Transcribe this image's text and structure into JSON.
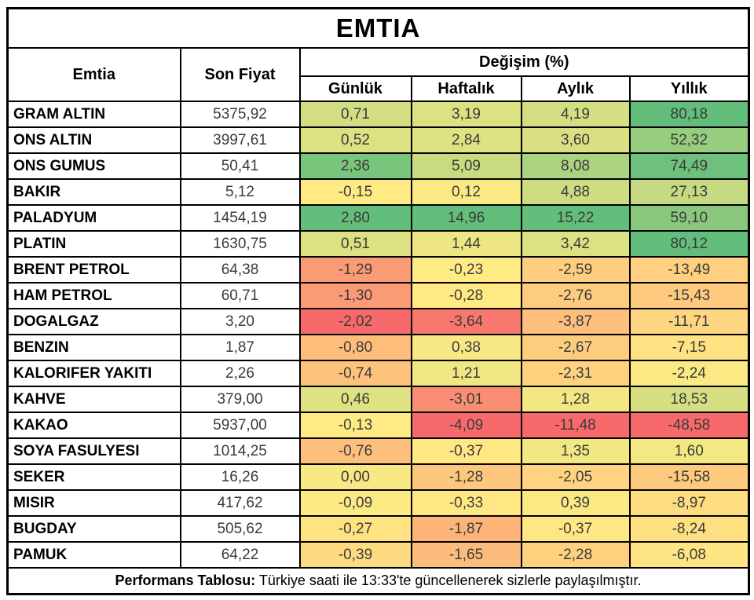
{
  "chart_data": {
    "type": "table",
    "title": "EMTIA",
    "header": {
      "emtia": "Emtia",
      "son_fiyat": "Son Fiyat",
      "degisim": "Değişim (%)",
      "periods": [
        "Günlük",
        "Haftalık",
        "Aylık",
        "Yıllık"
      ]
    },
    "rows": [
      {
        "name": "GRAM ALTIN",
        "price": "5375,92",
        "changes": [
          "0,71",
          "3,19",
          "4,19",
          "80,18"
        ]
      },
      {
        "name": "ONS ALTIN",
        "price": "3997,61",
        "changes": [
          "0,52",
          "2,84",
          "3,60",
          "52,32"
        ]
      },
      {
        "name": "ONS GUMUS",
        "price": "50,41",
        "changes": [
          "2,36",
          "5,09",
          "8,08",
          "74,49"
        ]
      },
      {
        "name": "BAKIR",
        "price": "5,12",
        "changes": [
          "-0,15",
          "0,12",
          "4,88",
          "27,13"
        ]
      },
      {
        "name": "PALADYUM",
        "price": "1454,19",
        "changes": [
          "2,80",
          "14,96",
          "15,22",
          "59,10"
        ]
      },
      {
        "name": "PLATIN",
        "price": "1630,75",
        "changes": [
          "0,51",
          "1,44",
          "3,42",
          "80,12"
        ]
      },
      {
        "name": "BRENT PETROL",
        "price": "64,38",
        "changes": [
          "-1,29",
          "-0,23",
          "-2,59",
          "-13,49"
        ]
      },
      {
        "name": "HAM PETROL",
        "price": "60,71",
        "changes": [
          "-1,30",
          "-0,28",
          "-2,76",
          "-15,43"
        ]
      },
      {
        "name": "DOGALGAZ",
        "price": "3,20",
        "changes": [
          "-2,02",
          "-3,64",
          "-3,87",
          "-11,71"
        ]
      },
      {
        "name": "BENZIN",
        "price": "1,87",
        "changes": [
          "-0,80",
          "0,38",
          "-2,67",
          "-7,15"
        ]
      },
      {
        "name": "KALORIFER YAKITI",
        "price": "2,26",
        "changes": [
          "-0,74",
          "1,21",
          "-2,31",
          "-2,24"
        ]
      },
      {
        "name": "KAHVE",
        "price": "379,00",
        "changes": [
          "0,46",
          "-3,01",
          "1,28",
          "18,53"
        ]
      },
      {
        "name": "KAKAO",
        "price": "5937,00",
        "changes": [
          "-0,13",
          "-4,09",
          "-11,48",
          "-48,58"
        ]
      },
      {
        "name": "SOYA FASULYESI",
        "price": "1014,25",
        "changes": [
          "-0,76",
          "-0,37",
          "1,35",
          "1,60"
        ]
      },
      {
        "name": "SEKER",
        "price": "16,26",
        "changes": [
          "0,00",
          "-1,28",
          "-2,05",
          "-15,58"
        ]
      },
      {
        "name": "MISIR",
        "price": "417,62",
        "changes": [
          "-0,09",
          "-0,33",
          "0,39",
          "-8,97"
        ]
      },
      {
        "name": "BUGDAY",
        "price": "505,62",
        "changes": [
          "-0,27",
          "-1,87",
          "-0,37",
          "-8,24"
        ]
      },
      {
        "name": "PAMUK",
        "price": "64,22",
        "changes": [
          "-0,39",
          "-1,65",
          "-2,28",
          "-6,08"
        ]
      }
    ],
    "color_scale": {
      "description": "3-color scale applied per column: min=red, median=yellow, max=green",
      "min_color": "#F8696B",
      "mid_color": "#FFEB84",
      "max_color": "#63BE7B"
    },
    "layout_hints": {
      "grid": true,
      "border_color": "#000000",
      "background": "#FFFFFF"
    }
  },
  "footer": {
    "label": "Performans Tablosu:",
    "text": " Türkiye saati ile 13:33'te güncellenerek sizlerle paylaşılmıştır."
  }
}
